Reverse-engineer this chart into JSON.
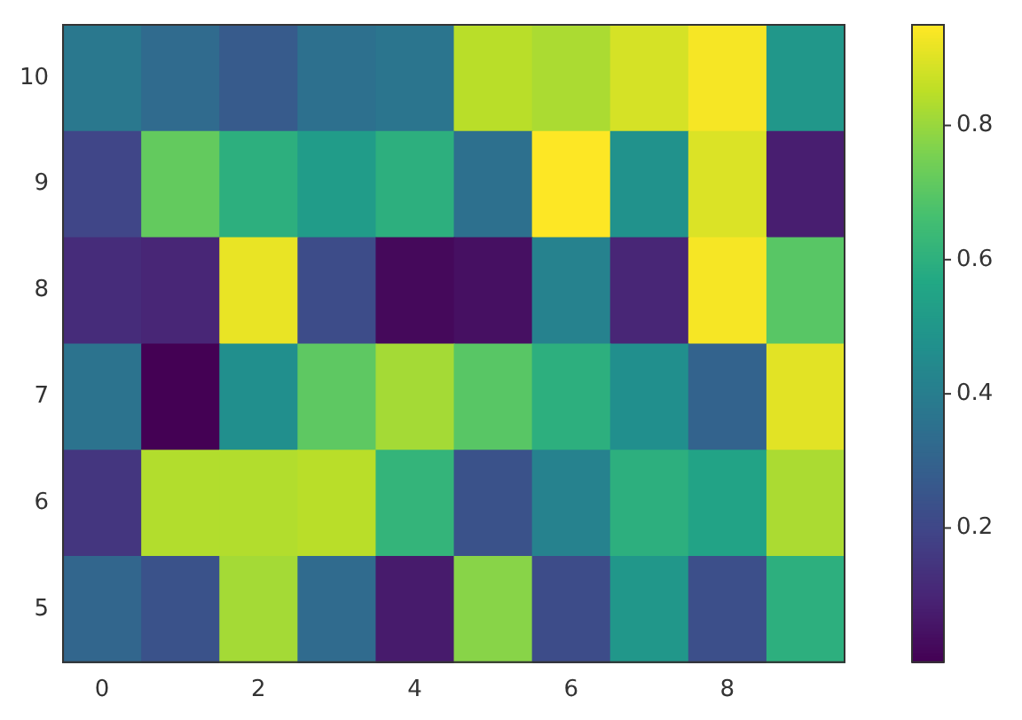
{
  "chart_data": {
    "type": "heatmap",
    "categories": [
      "0",
      null,
      "2",
      null,
      "4",
      null,
      "6",
      null,
      "8",
      null
    ],
    "y_categories": [
      "10",
      "9",
      "8",
      "7",
      "6",
      "5"
    ],
    "cells": [
      [
        0.38,
        0.33,
        0.27,
        0.35,
        0.37,
        0.85,
        0.83,
        0.89,
        0.94,
        0.5
      ],
      [
        0.2,
        0.72,
        0.6,
        0.52,
        0.6,
        0.35,
        0.95,
        0.48,
        0.9,
        0.08
      ],
      [
        0.12,
        0.1,
        0.92,
        0.22,
        0.02,
        0.04,
        0.42,
        0.1,
        0.94,
        0.7
      ],
      [
        0.36,
        0.0,
        0.47,
        0.71,
        0.82,
        0.7,
        0.6,
        0.47,
        0.3,
        0.91
      ],
      [
        0.15,
        0.84,
        0.84,
        0.85,
        0.62,
        0.24,
        0.42,
        0.6,
        0.55,
        0.83
      ],
      [
        0.31,
        0.24,
        0.82,
        0.33,
        0.07,
        0.78,
        0.22,
        0.5,
        0.23,
        0.6
      ]
    ],
    "clim": [
      0.0,
      0.95
    ],
    "cticks": [
      0.2,
      0.4,
      0.6,
      0.8
    ],
    "grid": false,
    "legend": false
  }
}
